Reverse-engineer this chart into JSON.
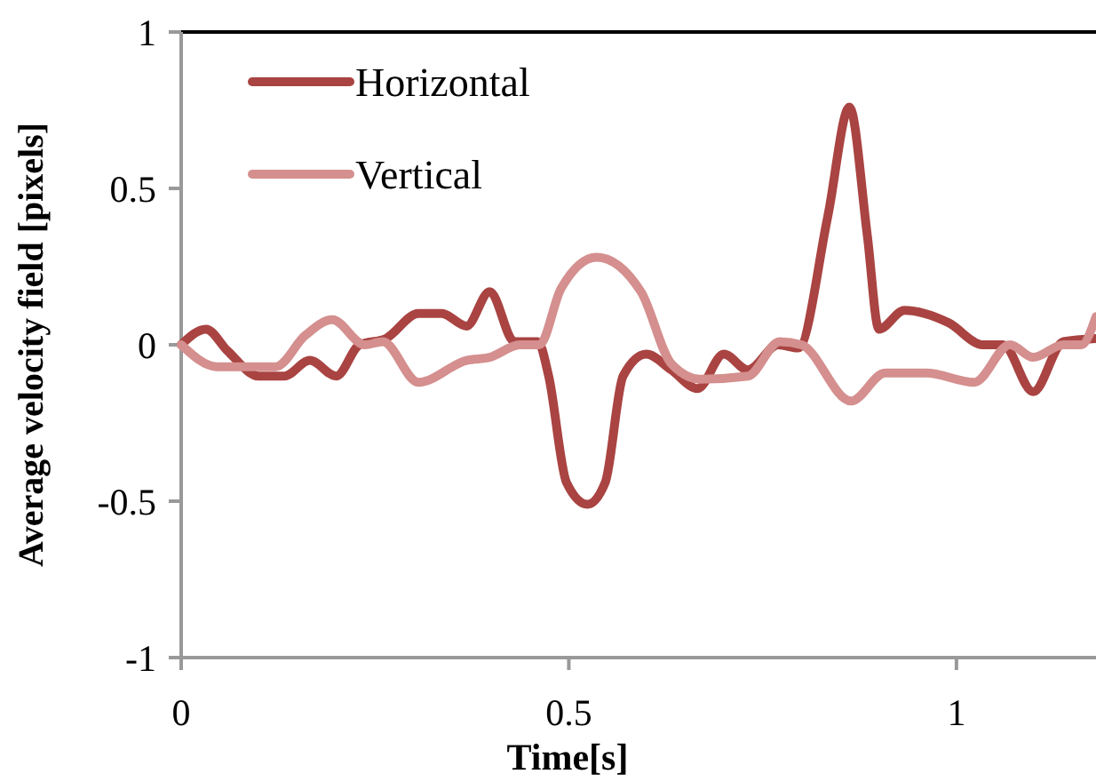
{
  "chart_data": {
    "type": "line",
    "xlabel": "Time[s]",
    "ylabel": "Average velocity field [pixels]",
    "xlim": [
      0,
      1.18
    ],
    "xticks": [
      0,
      0.5,
      1
    ],
    "ylim": [
      -1,
      1
    ],
    "yticks": [
      -1,
      -0.5,
      0,
      0.5,
      1
    ],
    "legend": "top left",
    "grid": false,
    "marker": "none",
    "line_style": "solid",
    "series": [
      {
        "name": "Horizontal",
        "color": "#a94442",
        "x": [
          0,
          0.032,
          0.06,
          0.1,
          0.133,
          0.166,
          0.2,
          0.23,
          0.264,
          0.306,
          0.336,
          0.368,
          0.398,
          0.43,
          0.46,
          0.474,
          0.497,
          0.524,
          0.547,
          0.57,
          0.6,
          0.632,
          0.666,
          0.7,
          0.731,
          0.77,
          0.796,
          0.834,
          0.862,
          0.885,
          0.9,
          0.933,
          0.99,
          1.034,
          1.06,
          1.099,
          1.138,
          1.18
        ],
        "values": [
          0,
          0.05,
          -0.02,
          -0.1,
          -0.1,
          -0.05,
          -0.1,
          0,
          0.02,
          0.1,
          0.1,
          0.06,
          0.17,
          0.01,
          0.01,
          -0.1,
          -0.44,
          -0.51,
          -0.44,
          -0.1,
          -0.03,
          -0.08,
          -0.14,
          -0.03,
          -0.08,
          0,
          -0.01,
          0.41,
          0.76,
          0.35,
          0.05,
          0.11,
          0.07,
          0,
          0,
          -0.15,
          0.01,
          0.02
        ]
      },
      {
        "name": "Vertical",
        "color": "#d48f8e",
        "x": [
          0,
          0.046,
          0.122,
          0.16,
          0.195,
          0.237,
          0.26,
          0.306,
          0.368,
          0.398,
          0.437,
          0.462,
          0.49,
          0.536,
          0.593,
          0.632,
          0.669,
          0.731,
          0.772,
          0.8,
          0.864,
          0.908,
          0.961,
          1.023,
          1.069,
          1.099,
          1.138,
          1.161,
          1.18
        ],
        "values": [
          0,
          -0.07,
          -0.07,
          0.03,
          0.08,
          0,
          0.01,
          -0.12,
          -0.05,
          -0.04,
          0,
          0,
          0.18,
          0.28,
          0.17,
          -0.06,
          -0.11,
          -0.1,
          0.01,
          0,
          -0.18,
          -0.09,
          -0.09,
          -0.12,
          0,
          -0.04,
          0,
          0,
          0.09
        ]
      }
    ]
  }
}
